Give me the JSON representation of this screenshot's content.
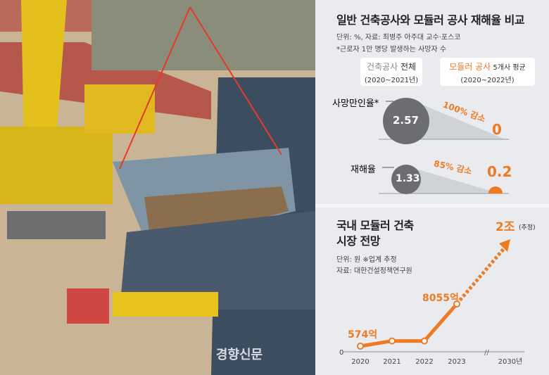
{
  "watermark": "경향신문",
  "accident": {
    "title": "일반 건축공사와 모듈러 공사 재해율 비교",
    "source": "단위: %, 자료: 최병주 아주대 교수·포스코",
    "note": "*근로자 1만 명당 발생하는 사망자 수",
    "col1": {
      "label_a": "건축공사",
      "label_b": " 전체",
      "period": "(2020~2021년)"
    },
    "col2": {
      "label_a": "모듈러 공사",
      "label_b": " 5개사 평균",
      "period": "(2020~2022년)"
    },
    "rows": [
      {
        "label": "사망만인율*",
        "general": "2.57",
        "modular": "0",
        "change": "100% 감소"
      },
      {
        "label": "재해율",
        "general": "1.33",
        "modular": "0.2",
        "change": "85% 감소"
      }
    ]
  },
  "chart_data": {
    "type": "line",
    "title": "국내 모듈러 건축 시장 전망",
    "title_lines": [
      "국내 모듈러 건축",
      "시장 전망"
    ],
    "unit": "단위: 원 ※업계 추정",
    "source": "자료: 대한건설정책연구원",
    "categories": [
      "2020",
      "2021",
      "2022",
      "2023",
      "2030년"
    ],
    "values": [
      574,
      1500,
      1500,
      8055,
      20000
    ],
    "data_labels": [
      "574억",
      "",
      "",
      "8055억",
      "2조"
    ],
    "estimate_note": "(추정)",
    "y_zero_label": "0",
    "projected_segment": "2023-2030 dashed arrow",
    "color": "#ef7a22"
  }
}
